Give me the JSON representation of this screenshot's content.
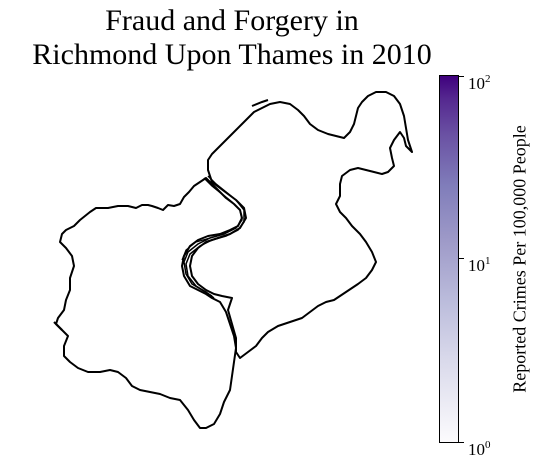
{
  "title": {
    "line1": "Fraud and Forgery in",
    "line2": "Richmond Upon Thames in 2010"
  },
  "colorbar": {
    "label": "Reported Crimes Per 100,000 People",
    "scale": "log",
    "range": [
      1,
      100
    ],
    "ticks": [
      {
        "base": "10",
        "exp": "0"
      },
      {
        "base": "10",
        "exp": "1"
      },
      {
        "base": "10",
        "exp": "2"
      }
    ],
    "colors": [
      "#fcfbfd",
      "#bcbddc",
      "#807dba",
      "#3f007d"
    ]
  },
  "map": {
    "region": "Richmond Upon Thames",
    "fill_color": "#ffffff",
    "outline_color": "#000000"
  }
}
